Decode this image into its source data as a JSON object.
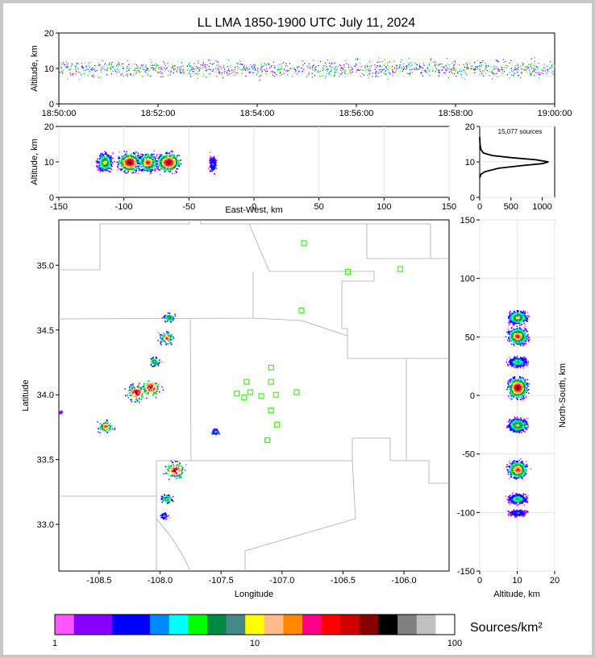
{
  "chart_data": [
    {
      "type": "scatter",
      "title": "LL LMA 1850-1900 UTC July 11, 2024",
      "xlabel": "",
      "ylabel": "Altitude, km",
      "x_ticks": [
        "18:50:00",
        "18:52:00",
        "18:54:00",
        "18:56:00",
        "18:58:00",
        "19:00:00"
      ],
      "xlim_minutes": [
        0,
        10
      ],
      "ylim": [
        0,
        20
      ],
      "y_ticks": [
        0,
        10,
        20
      ],
      "description": "time-height source density"
    },
    {
      "type": "scatter",
      "xlabel": "East-West, km",
      "ylabel": "Altitude, km",
      "xlim": [
        -150,
        150
      ],
      "ylim": [
        0,
        20
      ],
      "x_ticks": [
        -150,
        -100,
        -50,
        0,
        50,
        100,
        150
      ],
      "y_ticks": [
        0,
        10,
        20
      ],
      "clusters": [
        {
          "x": -115,
          "y": 10,
          "spread": 4
        },
        {
          "x": -96,
          "y": 10,
          "spread": 6
        },
        {
          "x": -82,
          "y": 10,
          "spread": 5
        },
        {
          "x": -66,
          "y": 10,
          "spread": 6
        },
        {
          "x": -32,
          "y": 9.5,
          "spread": 2
        }
      ]
    },
    {
      "type": "line",
      "annotation": "15,077 sources",
      "xlim": [
        0,
        1200
      ],
      "ylim": [
        0,
        20
      ],
      "x_ticks": [
        0,
        500,
        1000
      ],
      "y_ticks": [
        0,
        10,
        20
      ],
      "series": [
        {
          "points": [
            [
              0,
              5.5
            ],
            [
              20,
              6.5
            ],
            [
              80,
              7.2
            ],
            [
              300,
              8.2
            ],
            [
              700,
              9.0
            ],
            [
              1000,
              9.5
            ],
            [
              1100,
              10.0
            ],
            [
              900,
              10.6
            ],
            [
              500,
              11.2
            ],
            [
              200,
              11.8
            ],
            [
              60,
              12.5
            ],
            [
              20,
              13.5
            ],
            [
              5,
              15
            ],
            [
              0,
              17
            ]
          ]
        }
      ]
    },
    {
      "type": "scatter",
      "xlabel": "Longitude",
      "ylabel": "Latitude",
      "xlim": [
        -108.83,
        -105.63
      ],
      "ylim": [
        32.64,
        35.35
      ],
      "x_ticks": [
        -108.5,
        -108.0,
        -107.5,
        -107.0,
        -106.5,
        -106.0
      ],
      "y_ticks": [
        33.0,
        33.5,
        34.0,
        34.5,
        35.0
      ],
      "clusters": [
        {
          "lon": -107.93,
          "lat": 34.6,
          "spread": 0.03
        },
        {
          "lon": -107.95,
          "lat": 34.44,
          "spread": 0.04
        },
        {
          "lon": -108.05,
          "lat": 34.26,
          "spread": 0.03
        },
        {
          "lon": -108.08,
          "lat": 34.06,
          "spread": 0.05
        },
        {
          "lon": -108.2,
          "lat": 34.02,
          "spread": 0.05
        },
        {
          "lon": -108.45,
          "lat": 33.76,
          "spread": 0.04
        },
        {
          "lon": -107.88,
          "lat": 33.42,
          "spread": 0.05
        },
        {
          "lon": -107.95,
          "lat": 33.2,
          "spread": 0.03
        },
        {
          "lon": -107.97,
          "lat": 33.07,
          "spread": 0.02
        },
        {
          "lon": -107.55,
          "lat": 33.72,
          "spread": 0.02
        },
        {
          "lon": -108.82,
          "lat": 33.87,
          "spread": 0.01
        }
      ],
      "stations": [
        [
          -106.82,
          35.17
        ],
        [
          -106.46,
          34.95
        ],
        [
          -106.03,
          34.97
        ],
        [
          -106.84,
          34.65
        ],
        [
          -107.09,
          34.21
        ],
        [
          -107.29,
          34.1
        ],
        [
          -107.09,
          34.1
        ],
        [
          -107.26,
          34.02
        ],
        [
          -107.37,
          34.01
        ],
        [
          -107.31,
          33.98
        ],
        [
          -107.17,
          33.99
        ],
        [
          -107.05,
          34.0
        ],
        [
          -106.88,
          34.02
        ],
        [
          -107.09,
          33.88
        ],
        [
          -107.04,
          33.77
        ],
        [
          -107.12,
          33.65
        ]
      ]
    },
    {
      "type": "scatter",
      "xlabel": "Altitude, km",
      "ylabel": "North-South, km",
      "xlim": [
        0,
        20
      ],
      "ylim": [
        -150,
        150
      ],
      "x_ticks": [
        0,
        10,
        20
      ],
      "y_ticks": [
        -150,
        -100,
        -50,
        0,
        50,
        100,
        150
      ],
      "clusters": [
        {
          "x": 10,
          "y": 67,
          "spread": 4
        },
        {
          "x": 10,
          "y": 51,
          "spread": 5
        },
        {
          "x": 10,
          "y": 29,
          "spread": 3
        },
        {
          "x": 10,
          "y": 7,
          "spread": 6
        },
        {
          "x": 10,
          "y": -25,
          "spread": 4
        },
        {
          "x": 10,
          "y": -63,
          "spread": 5
        },
        {
          "x": 10,
          "y": -88,
          "spread": 3
        },
        {
          "x": 10,
          "y": -100,
          "spread": 2
        }
      ]
    }
  ],
  "colorbar": {
    "label": "Sources/km²",
    "ticks": [
      "1",
      "10",
      "100"
    ],
    "colors": [
      "#ff55ff",
      "#8800ff",
      "#8800ff",
      "#0000ff",
      "#0000ff",
      "#0088ff",
      "#00ffff",
      "#00ff00",
      "#008844",
      "#448888",
      "#ffff00",
      "#ffbb88",
      "#ff8800",
      "#ff0088",
      "#ff0000",
      "#cc0000",
      "#880000",
      "#000000",
      "#808080",
      "#c0c0c0",
      "#ffffff"
    ]
  }
}
